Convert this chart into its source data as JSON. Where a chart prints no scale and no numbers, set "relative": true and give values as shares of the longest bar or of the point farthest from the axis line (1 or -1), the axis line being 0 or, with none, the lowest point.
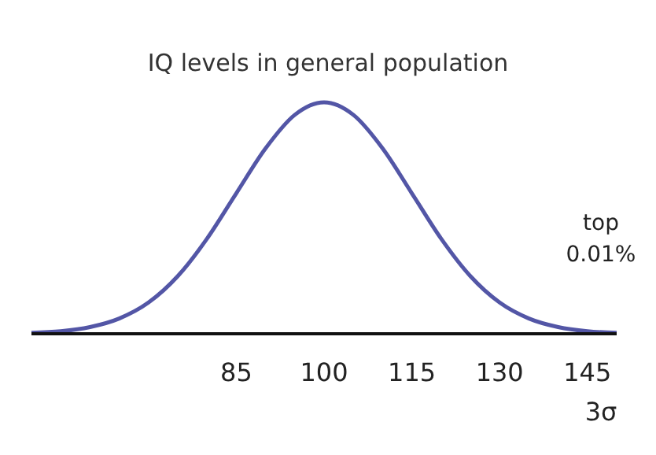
{
  "chart_data": {
    "type": "line",
    "title": "IQ levels in general population",
    "relative": true,
    "xlim": [
      50,
      150
    ],
    "xticks": [
      85,
      100,
      115,
      130,
      145
    ],
    "x": [
      50,
      55,
      60,
      65,
      70,
      75,
      80,
      85,
      90,
      95,
      100,
      105,
      110,
      115,
      120,
      125,
      130,
      135,
      140,
      145,
      150
    ],
    "series": [
      {
        "color": "#5356a6",
        "values": [
          0.004,
          0.011,
          0.029,
          0.066,
          0.135,
          0.249,
          0.411,
          0.607,
          0.801,
          0.946,
          1,
          0.946,
          0.801,
          0.607,
          0.411,
          0.249,
          0.135,
          0.066,
          0.029,
          0.011,
          0.004
        ]
      }
    ],
    "grid": false,
    "marker": "none",
    "line_style": "solid",
    "annotations": [
      "top 0.01%",
      "3σ"
    ]
  }
}
